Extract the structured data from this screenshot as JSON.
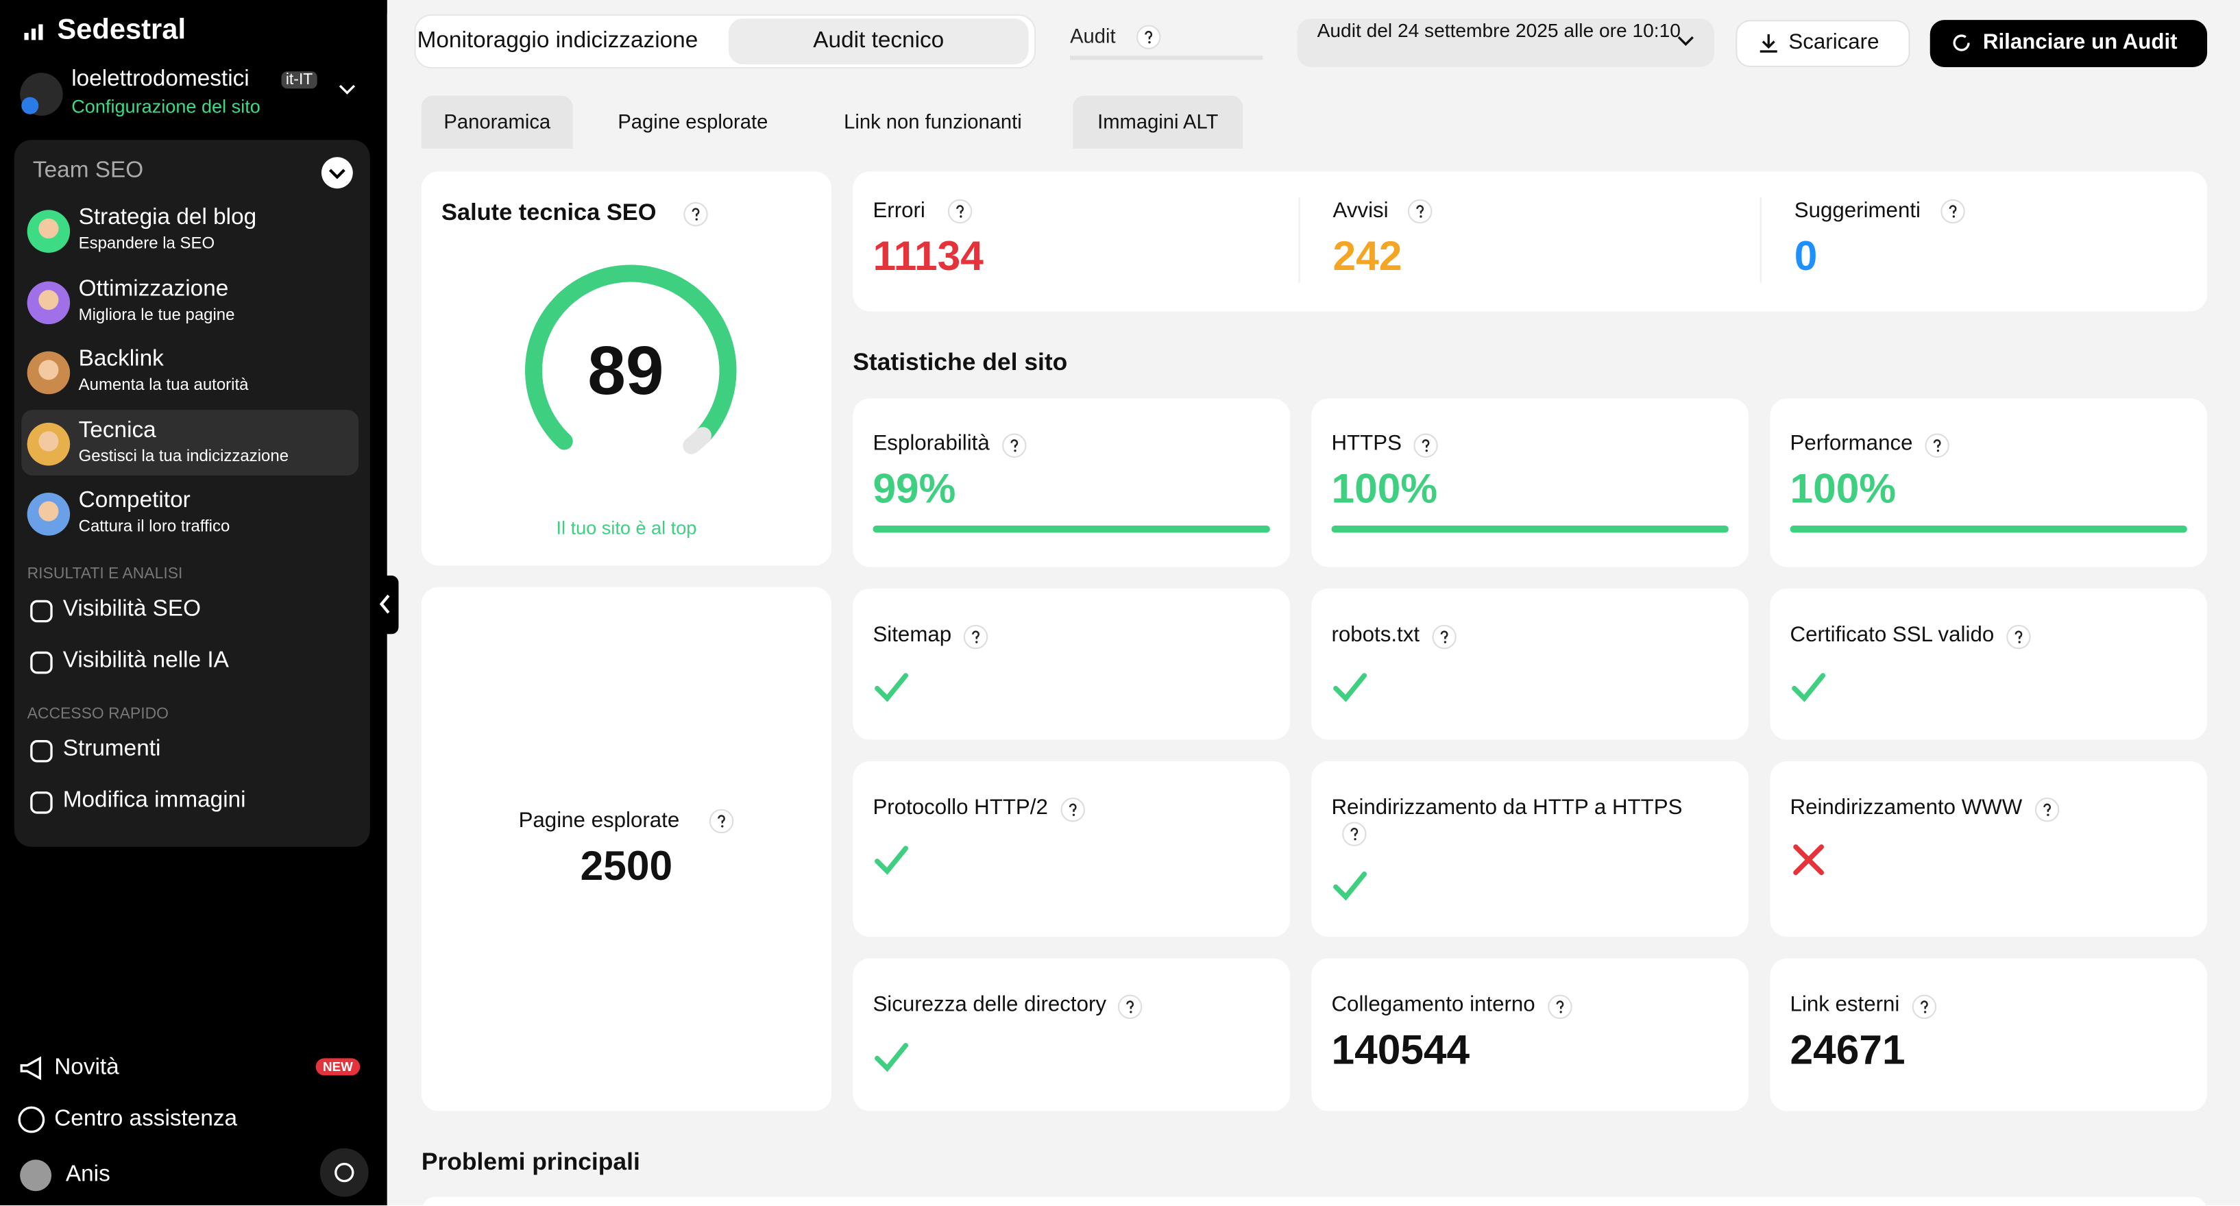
{
  "sidebar": {
    "brand": "Sedestral",
    "site": {
      "name": "loelettrodomestici",
      "locale": "it-IT",
      "config": "Configurazione del sito"
    },
    "team": "Team SEO",
    "items": [
      {
        "title": "Strategia del blog",
        "subtitle": "Espandere la SEO"
      },
      {
        "title": "Ottimizzazione",
        "subtitle": "Migliora le tue pagine"
      },
      {
        "title": "Backlink",
        "subtitle": "Aumenta la tua autorità"
      },
      {
        "title": "Tecnica",
        "subtitle": "Gestisci la tua indicizzazione"
      },
      {
        "title": "Competitor",
        "subtitle": "Cattura il loro traffico"
      }
    ],
    "sections": [
      {
        "label": "RISULTATI E ANALISI",
        "items": [
          "Visibilità SEO",
          "Visibilità nelle IA"
        ]
      },
      {
        "label": "ACCESSO RAPIDO",
        "items": [
          "Strumenti",
          "Modifica immagini"
        ]
      }
    ],
    "footer": {
      "news": "Novità",
      "badge": "NEW",
      "help": "Centro assistenza",
      "user": "Anis"
    }
  },
  "topbar": {
    "modes": [
      "Monitoraggio indicizzazione",
      "Audit tecnico"
    ],
    "audit_label": "Audit",
    "audit_date": "Audit del 24 settembre 2025 alle ore 10:10",
    "download": "Scaricare",
    "rerun": "Rilanciare un Audit"
  },
  "tabs": [
    "Panoramica",
    "Pagine esplorate",
    "Link non funzionanti",
    "Immagini ALT"
  ],
  "health": {
    "title": "Salute tecnica SEO",
    "score": 89,
    "caption": "Il tuo sito è al top"
  },
  "crawled": {
    "label": "Pagine esplorate",
    "value": 2500
  },
  "issues": [
    {
      "label": "Errori",
      "value": 11134
    },
    {
      "label": "Avvisi",
      "value": 242
    },
    {
      "label": "Suggerimenti",
      "value": 0
    }
  ],
  "stats_title": "Statistiche del sito",
  "stats": [
    {
      "label": "Esplorabilità",
      "value": "99%"
    },
    {
      "label": "HTTPS",
      "value": "100%"
    },
    {
      "label": "Performance",
      "value": "100%"
    }
  ],
  "checks": [
    {
      "label": "Sitemap",
      "ok": true
    },
    {
      "label": "robots.txt",
      "ok": true
    },
    {
      "label": "Certificato SSL valido",
      "ok": true
    },
    {
      "label": "Protocollo HTTP/2",
      "ok": true
    },
    {
      "label": "Reindirizzamento da HTTP a HTTPS",
      "ok": true
    },
    {
      "label": "Reindirizzamento WWW",
      "ok": false
    },
    {
      "label": "Sicurezza delle directory",
      "ok": true
    }
  ],
  "counts": [
    {
      "label": "Collegamento interno",
      "value": 140544
    },
    {
      "label": "Link esterni",
      "value": 24671
    }
  ],
  "problems_title": "Problemi principali"
}
